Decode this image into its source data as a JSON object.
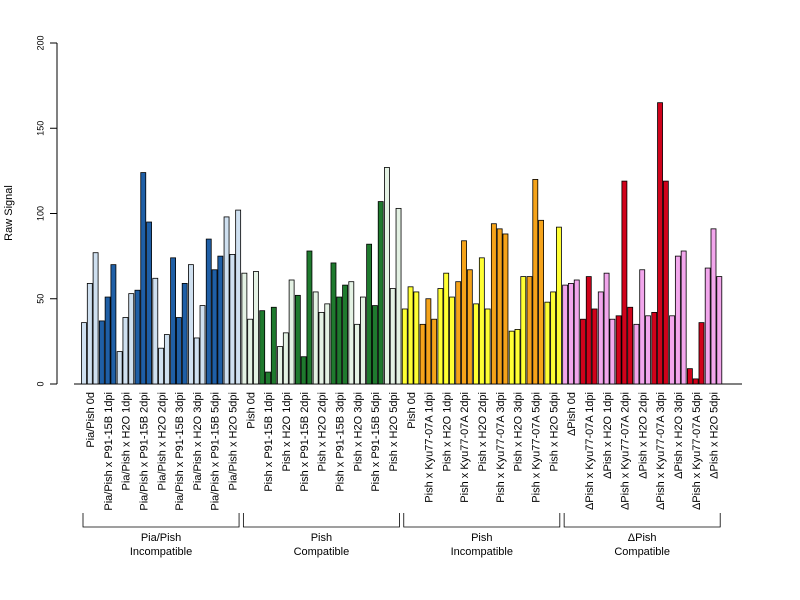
{
  "chart_data": {
    "type": "bar",
    "ylabel": "Raw Signal",
    "ylim": [
      0,
      200
    ],
    "yticks": [
      0,
      50,
      100,
      150,
      200
    ],
    "replicate_count": 3,
    "categories": [
      "Pia/Pish 0d",
      "Pia/Pish x P91-15B 1dpi",
      "Pia/Pish x H2O 1dpi",
      "Pia/Pish x P91-15B 2dpi",
      "Pia/Pish x H2O 2dpi",
      "Pia/Pish x P91-15B 3dpi",
      "Pia/Pish x H2O 3dpi",
      "Pia/Pish x P91-15B 5dpi",
      "Pia/Pish x H2O 5dpi",
      "Pish 0d",
      "Pish x P91-15B 1dpi",
      "Pish x H2O 1dpi",
      "Pish x P91-15B 2dpi",
      "Pish x H2O 2dpi",
      "Pish x P91-15B 3dpi",
      "Pish x H2O 3dpi",
      "Pish x P91-15B 5dpi",
      "Pish x H2O 5dpi",
      "Pish 0d",
      "Pish x Kyu77-07A 1dpi",
      "Pish x H2O 1dpi",
      "Pish x Kyu77-07A 2dpi",
      "Pish x H2O 2dpi",
      "Pish x Kyu77-07A 3dpi",
      "Pish x H2O 3dpi",
      "Pish x Kyu77-07A 5dpi",
      "Pish x H2O 5dpi",
      "ΔPish 0d",
      "ΔPish x Kyu77-07A 1dpi",
      "ΔPish x H2O 1dpi",
      "ΔPish x Kyu77-07A 2dpi",
      "ΔPish x H2O 2dpi",
      "ΔPish x Kyu77-07A 3dpi",
      "ΔPish x H2O 3dpi",
      "ΔPish x Kyu77-07A 5dpi",
      "ΔPish x H2O 5dpi"
    ],
    "values": [
      [
        36,
        59,
        77
      ],
      [
        37,
        51,
        70
      ],
      [
        19,
        39,
        53
      ],
      [
        55,
        124,
        95
      ],
      [
        62,
        21,
        29
      ],
      [
        74,
        39,
        59
      ],
      [
        70,
        27,
        46
      ],
      [
        85,
        67,
        75
      ],
      [
        98,
        76,
        102
      ],
      [
        65,
        38,
        66
      ],
      [
        43,
        7,
        45
      ],
      [
        22,
        30,
        61
      ],
      [
        52,
        16,
        78
      ],
      [
        54,
        42,
        47
      ],
      [
        71,
        51,
        58
      ],
      [
        60,
        35,
        51
      ],
      [
        82,
        46,
        107
      ],
      [
        127,
        56,
        103
      ],
      [
        44,
        57,
        54
      ],
      [
        35,
        50,
        38
      ],
      [
        56,
        65,
        51
      ],
      [
        60,
        84,
        67
      ],
      [
        47,
        74,
        44
      ],
      [
        94,
        91,
        88
      ],
      [
        31,
        32,
        63
      ],
      [
        63,
        120,
        96
      ],
      [
        48,
        54,
        92
      ],
      [
        58,
        59,
        61
      ],
      [
        38,
        63,
        44
      ],
      [
        54,
        65,
        38
      ],
      [
        40,
        119,
        45
      ],
      [
        35,
        67,
        40
      ],
      [
        42,
        165,
        119
      ],
      [
        40,
        75,
        78
      ],
      [
        9,
        3,
        36
      ],
      [
        68,
        91,
        63
      ]
    ],
    "bar_colors": [
      "#cfe0f0",
      "#1f5fa6",
      "#cfe0f0",
      "#1f5fa6",
      "#cfe0f0",
      "#1f5fa6",
      "#cfe0f0",
      "#1f5fa6",
      "#cfe0f0",
      "#e4f2e4",
      "#1f7a2e",
      "#e4f2e4",
      "#1f7a2e",
      "#e4f2e4",
      "#1f7a2e",
      "#e4f2e4",
      "#1f7a2e",
      "#e4f2e4",
      "#ffff33",
      "#f5a31a",
      "#ffff33",
      "#f5a31a",
      "#ffff33",
      "#f5a31a",
      "#ffff33",
      "#f5a31a",
      "#ffff33",
      "#f2a6ec",
      "#d0021b",
      "#f2a6ec",
      "#d0021b",
      "#f2a6ec",
      "#d0021b",
      "#f2a6ec",
      "#d0021b",
      "#f2a6ec"
    ],
    "groups": [
      {
        "line1": "Pia/Pish",
        "line2": "Incompatible",
        "start": 0,
        "end": 8
      },
      {
        "line1": "Pish",
        "line2": "Compatible",
        "start": 9,
        "end": 17
      },
      {
        "line1": "Pish",
        "line2": "Incompatible",
        "start": 18,
        "end": 26
      },
      {
        "line1": "ΔPish",
        "line2": "Compatible",
        "start": 27,
        "end": 35
      }
    ],
    "grid": false,
    "legend": "none"
  }
}
